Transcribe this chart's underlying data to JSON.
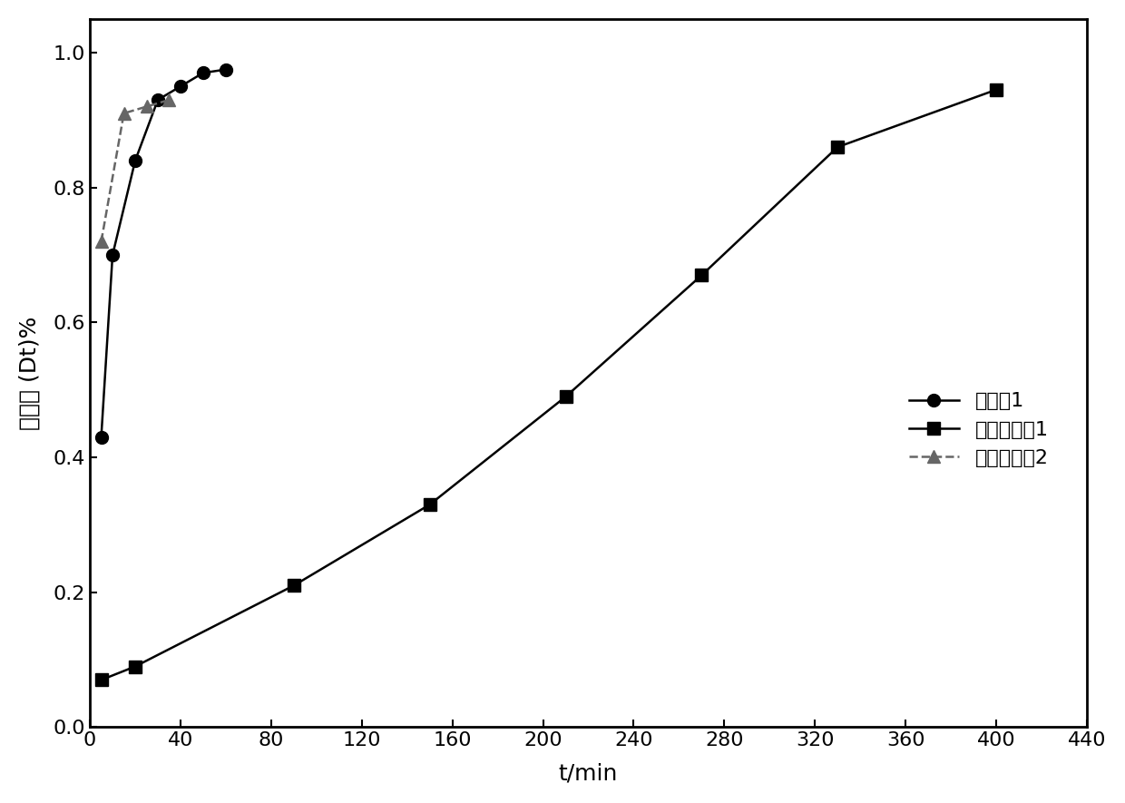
{
  "series1": {
    "label": "实施例1",
    "x": [
      5,
      10,
      20,
      30,
      40,
      50,
      60
    ],
    "y": [
      0.43,
      0.7,
      0.84,
      0.93,
      0.95,
      0.97,
      0.975
    ],
    "marker": "o",
    "linestyle": "-",
    "color": "#000000",
    "markersize": 10
  },
  "series2": {
    "label": "对比实施例1",
    "x": [
      5,
      20,
      90,
      150,
      210,
      270,
      330,
      400
    ],
    "y": [
      0.07,
      0.09,
      0.21,
      0.33,
      0.49,
      0.67,
      0.86,
      0.945
    ],
    "marker": "s",
    "linestyle": "-",
    "color": "#000000",
    "markersize": 10
  },
  "series3": {
    "label": "对比实施例2",
    "x": [
      5,
      15,
      25,
      35
    ],
    "y": [
      0.72,
      0.91,
      0.92,
      0.93
    ],
    "marker": "^",
    "linestyle": "--",
    "color": "#666666",
    "markersize": 10
  },
  "xlabel": "t/min",
  "ylabel": "降解率 (Dt)%",
  "xlim": [
    0,
    440
  ],
  "ylim": [
    0,
    1.05
  ],
  "xticks": [
    0,
    40,
    80,
    120,
    160,
    200,
    240,
    280,
    320,
    360,
    400,
    440
  ],
  "yticks": [
    0.0,
    0.2,
    0.4,
    0.6,
    0.8,
    1.0
  ],
  "figsize": [
    12.4,
    8.85
  ],
  "dpi": 100,
  "background_color": "#ffffff"
}
